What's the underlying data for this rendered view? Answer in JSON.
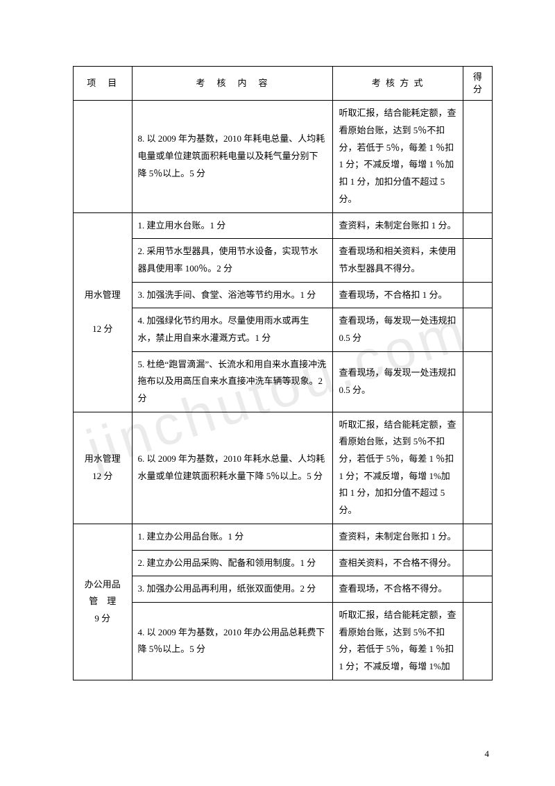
{
  "header": {
    "col_project": "项　目",
    "col_content": "考　核　内　容",
    "col_method": "考 核 方 式",
    "col_score": "得分"
  },
  "rows": [
    {
      "project": "",
      "content": "8. 以 2009 年为基数，2010 年耗电总量、人均耗电量或单位建筑面积耗电量以及耗气量分别下降 5％以上。5 分",
      "method": "听取汇报，结合能耗定额，查看原始台账，达到 5％不扣分，若低于 5％，每差 1 ％扣 1 分；不减反增，每增 1 ％加扣 1 分，加扣分值不超过 5 分。"
    },
    {
      "project": "用水管理\n\n12 分",
      "project_rowspan": 5,
      "content": "1. 建立用水台账。1 分",
      "method": "查资料，未制定台账扣 1 分。"
    },
    {
      "content": "2. 采用节水型器具，使用节水设备，实现节水器具使用率 100％。2 分",
      "method": "查看现场和相关资料，未使用节水型器具不得分。"
    },
    {
      "content": "3. 加强洗手间、食堂、浴池等节约用水。1 分",
      "method": "查看现场，不合格扣 1 分。"
    },
    {
      "content": "4. 加强绿化节约用水。尽量使用雨水或再生水，禁止用自来水灌溉方式。1 分",
      "method": "查看现场，每发现一处违规扣 0.5 分"
    },
    {
      "content": "5. 杜绝“跑冒滴漏”、长流水和用自来水直接冲洗拖布以及用高压自来水直接冲洗车辆等现象。2 分",
      "method": "查看现场，每发现一处违规扣 0.5 分。"
    },
    {
      "project": "用水管理\n12 分",
      "content": "6. 以 2009 年为基数，2010 年耗水总量、人均耗水量或单位建筑面积耗水量下降 5％以上。5 分",
      "method": "听取汇报，结合能耗定额，查看原始台账，达到 5％不扣分，若低于 5％，每差 1 ％扣 1 分；不减反增，每增 1%加扣 1 分，加扣分值不超过 5 分。"
    },
    {
      "project": "办公用品\n管　理\n9 分",
      "project_rowspan": 4,
      "content": "1. 建立办公用品台账。1 分",
      "method": "查资料，未制定台账扣 1 分。"
    },
    {
      "content": "2. 建立办公用品采购、配备和领用制度。1 分",
      "method": "查相关资料，不合格不得分。"
    },
    {
      "content": "3. 加强办公用品再利用，纸张双面使用。2 分",
      "method": "查看现场，不合格不得分。"
    },
    {
      "content": "4. 以 2009 年为基数，2010 年办公用品总耗费下降 5％以上。5 分",
      "method": "听取汇报，结合能耗定额，查看原始台账，达到 5％不扣分，若低于 5％，每差 1 ％扣 1 分；不减反增，每增 1%加"
    }
  ],
  "watermark": "jinchutou.com",
  "page_number": "4"
}
